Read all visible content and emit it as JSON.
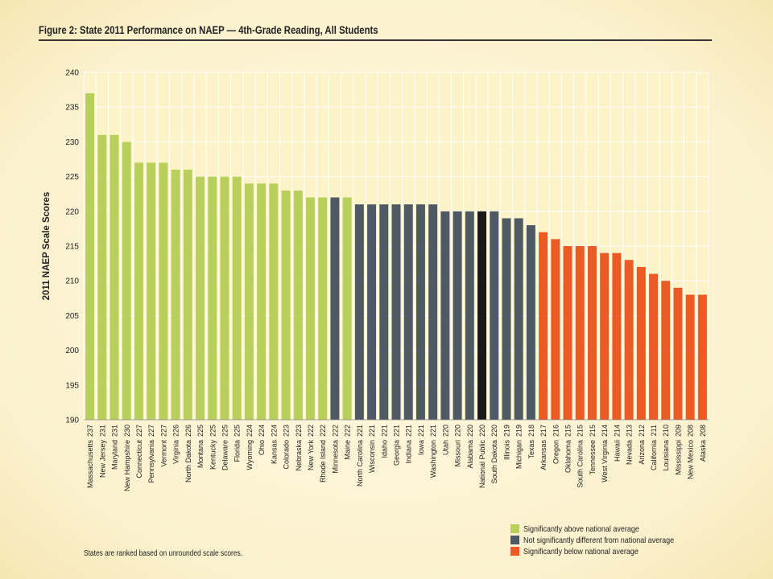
{
  "figure_title": "Figure 2: State 2011 Performance on NAEP — 4th-Grade Reading, All Students",
  "footnote": "States are ranked based on unrounded scale scores.",
  "colors": {
    "above": "#b9cf5b",
    "not_different": "#4f5963",
    "below": "#ec5a25",
    "national": "#1a1a1a",
    "plot_bg": "#fdf3c8",
    "grid": "#ffffff"
  },
  "legend": [
    {
      "key": "above",
      "label": "Significantly above national average"
    },
    {
      "key": "not_different",
      "label": "Not significantly different from national average"
    },
    {
      "key": "below",
      "label": "Significantly below national average"
    }
  ],
  "chart_data": {
    "type": "bar",
    "title": "Figure 2: State 2011 Performance on NAEP — 4th-Grade Reading, All Students",
    "ylabel": "2011 NAEP Scale Scores",
    "xlabel": "",
    "ylim": [
      190,
      240
    ],
    "yticks": [
      190,
      195,
      200,
      205,
      210,
      215,
      220,
      225,
      230,
      235,
      240
    ],
    "grid": true,
    "legend_position": "bottom-right",
    "bars": [
      {
        "label": "Massachusetts",
        "value": 237,
        "group": "above"
      },
      {
        "label": "New Jersey",
        "value": 231,
        "group": "above"
      },
      {
        "label": "Maryland",
        "value": 231,
        "group": "above"
      },
      {
        "label": "New Hampshire",
        "value": 230,
        "group": "above"
      },
      {
        "label": "Connecticut",
        "value": 227,
        "group": "above"
      },
      {
        "label": "Pennsylvania",
        "value": 227,
        "group": "above"
      },
      {
        "label": "Vermont",
        "value": 227,
        "group": "above"
      },
      {
        "label": "Virginia",
        "value": 226,
        "group": "above"
      },
      {
        "label": "North Dakota",
        "value": 226,
        "group": "above"
      },
      {
        "label": "Montana",
        "value": 225,
        "group": "above"
      },
      {
        "label": "Kentucky",
        "value": 225,
        "group": "above"
      },
      {
        "label": "Delaware",
        "value": 225,
        "group": "above"
      },
      {
        "label": "Florida",
        "value": 225,
        "group": "above"
      },
      {
        "label": "Wyoming",
        "value": 224,
        "group": "above"
      },
      {
        "label": "Ohio",
        "value": 224,
        "group": "above"
      },
      {
        "label": "Kansas",
        "value": 224,
        "group": "above"
      },
      {
        "label": "Colorado",
        "value": 223,
        "group": "above"
      },
      {
        "label": "Nebraska",
        "value": 223,
        "group": "above"
      },
      {
        "label": "New York",
        "value": 222,
        "group": "above"
      },
      {
        "label": "Rhode Island",
        "value": 222,
        "group": "above"
      },
      {
        "label": "Minnesota",
        "value": 222,
        "group": "not_different"
      },
      {
        "label": "Maine",
        "value": 222,
        "group": "above"
      },
      {
        "label": "North Carolina",
        "value": 221,
        "group": "not_different"
      },
      {
        "label": "Wisconsin",
        "value": 221,
        "group": "not_different"
      },
      {
        "label": "Idaho",
        "value": 221,
        "group": "not_different"
      },
      {
        "label": "Georgia",
        "value": 221,
        "group": "not_different"
      },
      {
        "label": "Indiana",
        "value": 221,
        "group": "not_different"
      },
      {
        "label": "Iowa",
        "value": 221,
        "group": "not_different"
      },
      {
        "label": "Washington",
        "value": 221,
        "group": "not_different"
      },
      {
        "label": "Utah",
        "value": 220,
        "group": "not_different"
      },
      {
        "label": "Missouri",
        "value": 220,
        "group": "not_different"
      },
      {
        "label": "Alabama",
        "value": 220,
        "group": "not_different"
      },
      {
        "label": "National Public",
        "value": 220,
        "group": "national"
      },
      {
        "label": "South Dakota",
        "value": 220,
        "group": "not_different"
      },
      {
        "label": "Illinois",
        "value": 219,
        "group": "not_different"
      },
      {
        "label": "Michigan",
        "value": 219,
        "group": "not_different"
      },
      {
        "label": "Texas",
        "value": 218,
        "group": "not_different"
      },
      {
        "label": "Arkansas",
        "value": 217,
        "group": "below"
      },
      {
        "label": "Oregon",
        "value": 216,
        "group": "below"
      },
      {
        "label": "Oklahoma",
        "value": 215,
        "group": "below"
      },
      {
        "label": "South Carolina",
        "value": 215,
        "group": "below"
      },
      {
        "label": "Tennessee",
        "value": 215,
        "group": "below"
      },
      {
        "label": "West Virginia",
        "value": 214,
        "group": "below"
      },
      {
        "label": "Hawaii",
        "value": 214,
        "group": "below"
      },
      {
        "label": "Nevada",
        "value": 213,
        "group": "below"
      },
      {
        "label": "Arizona",
        "value": 212,
        "group": "below"
      },
      {
        "label": "California",
        "value": 211,
        "group": "below"
      },
      {
        "label": "Louisiana",
        "value": 210,
        "group": "below"
      },
      {
        "label": "Mississippi",
        "value": 209,
        "group": "below"
      },
      {
        "label": "New Mexico",
        "value": 208,
        "group": "below"
      },
      {
        "label": "Alaska",
        "value": 208,
        "group": "below"
      }
    ]
  }
}
